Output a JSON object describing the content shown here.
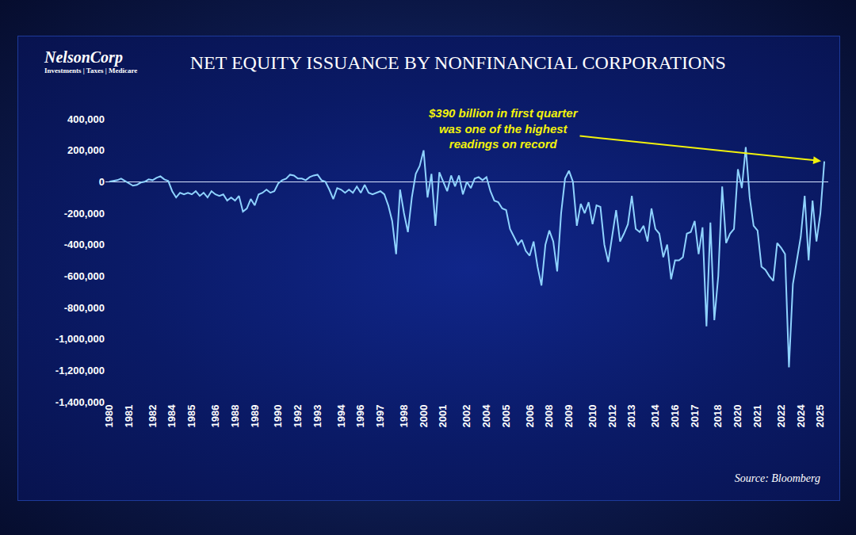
{
  "chart_data": {
    "type": "line",
    "title": "NET EQUITY ISSUANCE BY NONFINANCIAL CORPORATIONS",
    "logo": [
      "NelsonCorp",
      "Investments | Taxes | Medicare"
    ],
    "source": "Source: Bloomberg",
    "annotation": [
      "$390 billion in first quarter",
      "was one of the highest",
      "readings on record"
    ],
    "annotation_color": "#f2f20c",
    "color": "#8fd3ff",
    "grid": false,
    "categories": [
      "1980",
      null,
      null,
      null,
      null,
      "1981",
      null,
      null,
      null,
      null,
      null,
      "1982",
      null,
      null,
      null,
      null,
      "1984",
      null,
      null,
      null,
      null,
      "1985",
      null,
      null,
      null,
      null,
      null,
      "1986",
      null,
      null,
      null,
      null,
      "1988",
      null,
      null,
      null,
      null,
      "1989",
      null,
      null,
      null,
      null,
      null,
      "1990",
      null,
      null,
      null,
      null,
      "1992",
      null,
      null,
      null,
      null,
      "1993",
      null,
      null,
      null,
      null,
      null,
      "1994",
      null,
      null,
      null,
      null,
      "1996",
      null,
      null,
      null,
      null,
      "1997",
      null,
      null,
      null,
      null,
      null,
      "1998",
      null,
      null,
      null,
      null,
      "2000",
      null,
      null,
      null,
      null,
      "2001",
      null,
      null,
      null,
      null,
      null,
      "2002",
      null,
      null,
      null,
      null,
      "2004",
      null,
      null,
      null,
      null,
      "2005",
      null,
      null,
      null,
      null,
      null,
      "2006",
      null,
      null,
      null,
      null,
      "2008",
      null,
      null,
      null,
      null,
      "2009",
      null,
      null,
      null,
      null,
      null,
      "2010",
      null,
      null,
      null,
      null,
      "2012",
      null,
      null,
      null,
      null,
      "2013",
      null,
      null,
      null,
      null,
      null,
      "2014",
      null,
      null,
      null,
      null,
      "2016",
      null,
      null,
      null,
      null,
      "2017",
      null,
      null,
      null,
      null,
      null,
      "2018",
      null,
      null,
      null,
      null,
      "2020",
      null,
      null,
      null,
      null,
      "2021",
      null,
      null,
      null,
      null,
      null,
      "2022",
      null,
      null,
      null,
      null,
      "2024",
      null,
      null,
      null,
      null,
      "2025",
      null
    ],
    "values": [
      0,
      5000,
      10000,
      20000,
      5000,
      -10000,
      -25000,
      -20000,
      -5000,
      0,
      15000,
      10000,
      25000,
      35000,
      15000,
      5000,
      -60000,
      -100000,
      -70000,
      -80000,
      -70000,
      -80000,
      -60000,
      -90000,
      -70000,
      -100000,
      -60000,
      -80000,
      -90000,
      -80000,
      -120000,
      -100000,
      -120000,
      -90000,
      -190000,
      -170000,
      -110000,
      -150000,
      -80000,
      -70000,
      -50000,
      -70000,
      -60000,
      -10000,
      10000,
      20000,
      45000,
      40000,
      20000,
      20000,
      10000,
      30000,
      40000,
      45000,
      10000,
      0,
      -50000,
      -110000,
      -40000,
      -50000,
      -70000,
      -50000,
      -70000,
      -30000,
      -70000,
      -20000,
      -70000,
      -80000,
      -70000,
      -60000,
      -80000,
      -150000,
      -250000,
      -460000,
      -50000,
      -200000,
      -320000,
      -100000,
      50000,
      100000,
      200000,
      -100000,
      50000,
      -280000,
      60000,
      0,
      -60000,
      40000,
      -30000,
      40000,
      -80000,
      0,
      -40000,
      20000,
      30000,
      10000,
      30000,
      -60000,
      -120000,
      -130000,
      -170000,
      -180000,
      -300000,
      -350000,
      -400000,
      -370000,
      -440000,
      -470000,
      -380000,
      -540000,
      -660000,
      -400000,
      -310000,
      -380000,
      -570000,
      -200000,
      20000,
      70000,
      0,
      -280000,
      -140000,
      -200000,
      -130000,
      -270000,
      -150000,
      -160000,
      -400000,
      -510000,
      -350000,
      -180000,
      -380000,
      -330000,
      -270000,
      -90000,
      -300000,
      -320000,
      -280000,
      -380000,
      -170000,
      -300000,
      -330000,
      -480000,
      -400000,
      -620000,
      -500000,
      -500000,
      -480000,
      -330000,
      -320000,
      -250000,
      -460000,
      -290000,
      -920000,
      -260000,
      -880000,
      -600000,
      -30000,
      -390000,
      -330000,
      -300000,
      80000,
      -40000,
      220000,
      -100000,
      -280000,
      -310000,
      -540000,
      -560000,
      -600000,
      -630000,
      -390000,
      -420000,
      -460000,
      -1180000,
      -650000,
      -500000,
      -350000,
      -90000,
      -500000,
      -120000,
      -380000,
      -200000,
      130000
    ],
    "ylim": [
      -1400000,
      400000
    ],
    "yticks": [
      {
        "value": -1400000,
        "label": "-1,400,000"
      },
      {
        "value": -1200000,
        "label": "-1,200,000"
      },
      {
        "value": -1000000,
        "label": "-1,000,000"
      },
      {
        "value": -800000,
        "label": "-800,000"
      },
      {
        "value": -600000,
        "label": "-600,000"
      },
      {
        "value": -400000,
        "label": "-400,000"
      },
      {
        "value": -200000,
        "label": "-200,000"
      },
      0,
      {
        "value": 200000,
        "label": "200,000"
      },
      {
        "value": 400000,
        "label": "400,000"
      }
    ]
  }
}
